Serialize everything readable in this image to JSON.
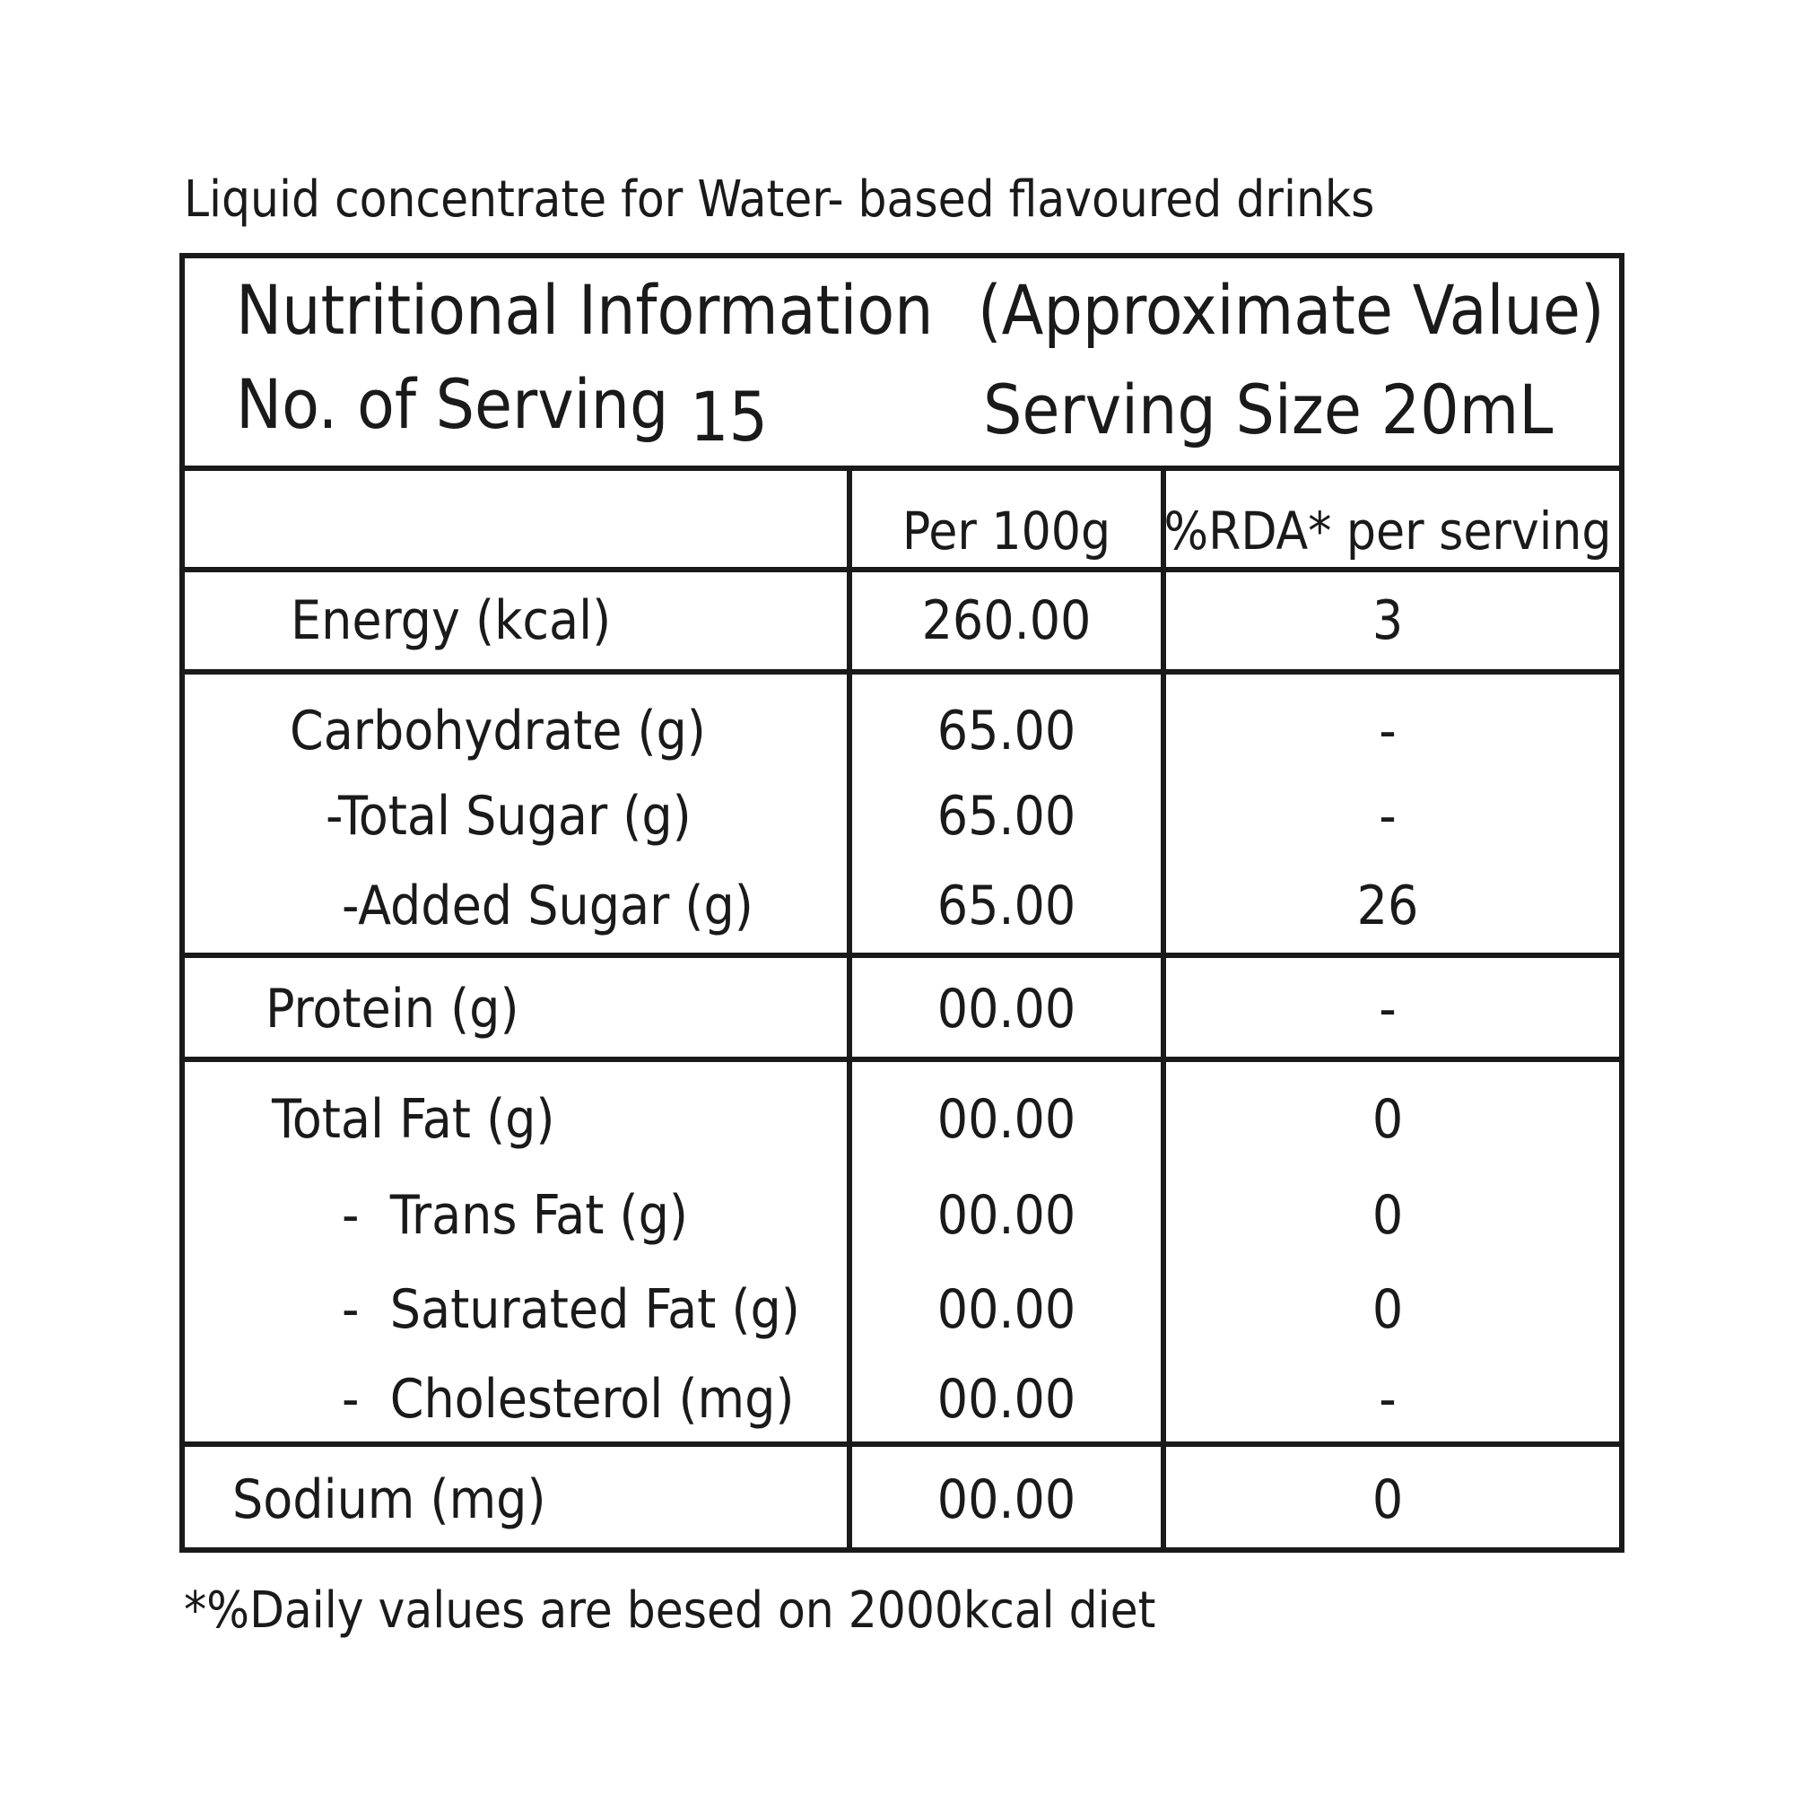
{
  "title": "Liquid concentrate for Water- based flavoured drinks",
  "table": {
    "header": {
      "title": "Nutritional Information",
      "note": "(Approximate Value)",
      "servings_label": "No. of Serving",
      "servings": "15",
      "serving_size": "Serving Size 20mL"
    },
    "columns": [
      "Per 100g",
      "%RDA* per serving"
    ],
    "rows": [
      {
        "label": "Energy (kcal)",
        "per_100g": "260.00",
        "rda": "3"
      },
      {
        "label": "Carbohydrate (g)",
        "per_100g": "65.00",
        "rda": "-"
      },
      {
        "label": "-Total Sugar (g)",
        "per_100g": "65.00",
        "rda": "-"
      },
      {
        "label": "-Added Sugar (g)",
        "per_100g": "65.00",
        "rda": "26"
      },
      {
        "label": "Protein (g)",
        "per_100g": "00.00",
        "rda": "-"
      },
      {
        "label": "Total Fat (g)",
        "per_100g": "00.00",
        "rda": "0"
      },
      {
        "label": "-  Trans Fat (g)",
        "per_100g": "00.00",
        "rda": "0"
      },
      {
        "label": "-  Saturated Fat (g)",
        "per_100g": "00.00",
        "rda": "0"
      },
      {
        "label": "-  Cholesterol (mg)",
        "per_100g": "00.00",
        "rda": "-"
      },
      {
        "label": "Sodium (mg)",
        "per_100g": "00.00",
        "rda": "0"
      }
    ]
  },
  "footnote": "*%Daily values are besed on 2000kcal diet"
}
